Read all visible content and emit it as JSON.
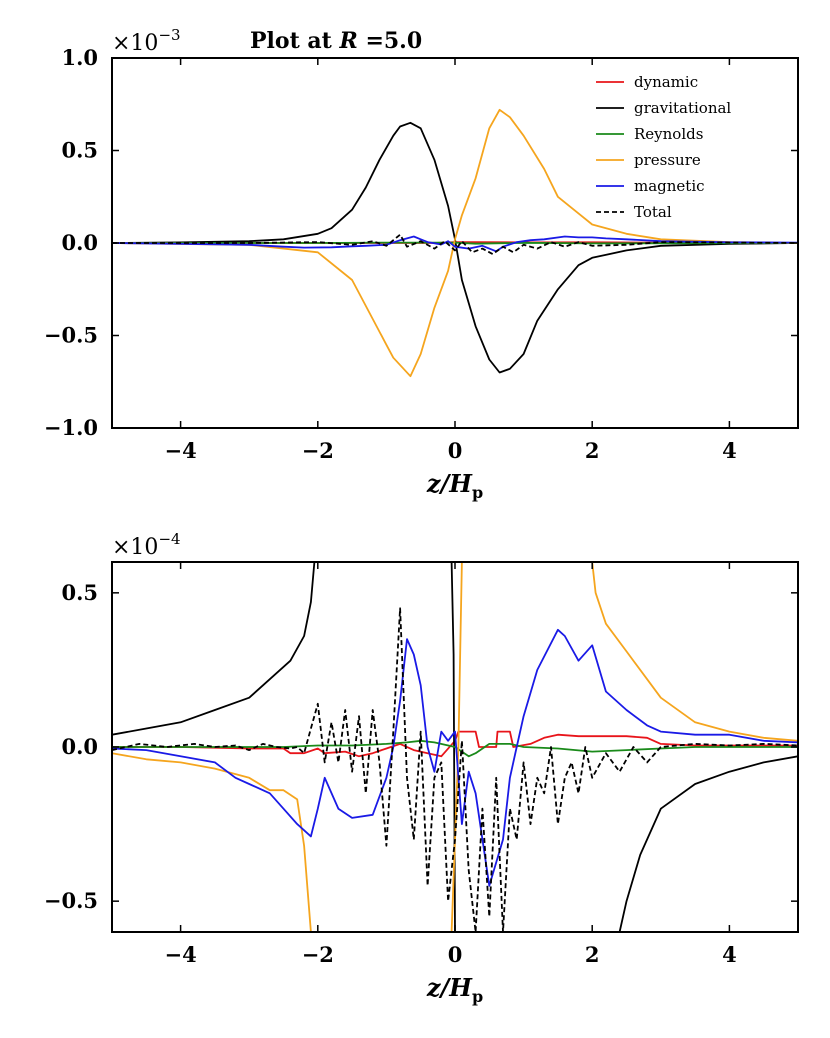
{
  "figure": {
    "title_prefix": "Plot at ",
    "title_var": "R",
    "title_suffix": " =5.0"
  },
  "series_styles": [
    {
      "name": "dynamic",
      "color": "#e8141a",
      "dash": ""
    },
    {
      "name": "gravitational",
      "color": "#000000",
      "dash": ""
    },
    {
      "name": "Reynolds",
      "color": "#1a8a1a",
      "dash": ""
    },
    {
      "name": "pressure",
      "color": "#f5a51e",
      "dash": ""
    },
    {
      "name": "magnetic",
      "color": "#1a1ae6",
      "dash": ""
    },
    {
      "name": "Total",
      "color": "#000000",
      "dash": "5,3"
    }
  ],
  "chart_data": [
    {
      "type": "line",
      "xlabel_var": "z/H",
      "xlabel_sub": "p",
      "scale_base": "×10",
      "scale_exp": "−3",
      "xlim": [
        -5,
        5
      ],
      "ylim": [
        -1.0,
        1.0
      ],
      "xticks": [
        -4,
        -2,
        0,
        2,
        4
      ],
      "xtick_labels": [
        "−4",
        "−2",
        "0",
        "2",
        "4"
      ],
      "yticks": [
        -1.0,
        -0.5,
        0.0,
        0.5,
        1.0
      ],
      "ytick_labels": [
        "−1.0",
        "−0.5",
        "0.0",
        "0.5",
        "1.0"
      ],
      "legend": [
        "dynamic",
        "gravitational",
        "Reynolds",
        "pressure",
        "magnetic",
        "Total"
      ],
      "series": [
        {
          "name": "dynamic",
          "x": [
            -5,
            -3,
            -1,
            -0.3,
            0,
            0.3,
            1,
            2,
            3,
            5
          ],
          "y": [
            0,
            0,
            0,
            0,
            0.005,
            0.005,
            0.003,
            0.004,
            0.002,
            0
          ]
        },
        {
          "name": "gravitational",
          "x": [
            -5,
            -4,
            -3,
            -2.5,
            -2,
            -1.8,
            -1.5,
            -1.3,
            -1.1,
            -0.9,
            -0.8,
            -0.65,
            -0.5,
            -0.3,
            -0.1,
            0,
            0.1,
            0.3,
            0.5,
            0.65,
            0.8,
            1.0,
            1.2,
            1.5,
            1.8,
            2,
            2.5,
            3,
            4,
            5
          ],
          "y": [
            0,
            0.003,
            0.01,
            0.02,
            0.05,
            0.08,
            0.18,
            0.3,
            0.45,
            0.58,
            0.63,
            0.65,
            0.62,
            0.45,
            0.2,
            0.02,
            -0.2,
            -0.45,
            -0.63,
            -0.7,
            -0.68,
            -0.6,
            -0.42,
            -0.25,
            -0.12,
            -0.08,
            -0.04,
            -0.015,
            -0.005,
            0
          ]
        },
        {
          "name": "Reynolds",
          "x": [
            -5,
            -2,
            -1,
            0,
            0.3,
            1,
            2,
            5
          ],
          "y": [
            0,
            0,
            0.002,
            0.002,
            -0.004,
            0.001,
            -0.002,
            0
          ]
        },
        {
          "name": "pressure",
          "x": [
            -5,
            -3,
            -2,
            -1.5,
            -1.0,
            -0.9,
            -0.65,
            -0.5,
            -0.3,
            -0.1,
            0,
            0.1,
            0.3,
            0.5,
            0.65,
            0.8,
            1.0,
            1.3,
            1.5,
            1.8,
            2,
            2.5,
            3,
            4,
            5
          ],
          "y": [
            0,
            -0.01,
            -0.05,
            -0.2,
            -0.55,
            -0.62,
            -0.72,
            -0.6,
            -0.35,
            -0.15,
            0.02,
            0.15,
            0.35,
            0.62,
            0.72,
            0.68,
            0.58,
            0.4,
            0.25,
            0.16,
            0.1,
            0.05,
            0.02,
            0.005,
            0
          ]
        },
        {
          "name": "magnetic",
          "x": [
            -5,
            -4,
            -3,
            -2.5,
            -2.2,
            -1.8,
            -1.5,
            -1.3,
            -1.0,
            -0.8,
            -0.6,
            -0.5,
            -0.4,
            -0.2,
            -0.1,
            0,
            0.2,
            0.4,
            0.6,
            0.7,
            0.9,
            1.1,
            1.3,
            1.6,
            1.8,
            2,
            2.2,
            2.5,
            3,
            4,
            5
          ],
          "y": [
            0,
            -0.005,
            -0.01,
            -0.02,
            -0.025,
            -0.023,
            -0.018,
            -0.015,
            -0.01,
            0.015,
            0.035,
            0.02,
            0.005,
            -0.008,
            0.01,
            -0.02,
            -0.03,
            -0.015,
            -0.045,
            -0.02,
            0.005,
            0.015,
            0.02,
            0.035,
            0.03,
            0.03,
            0.025,
            0.02,
            0.01,
            0.004,
            0.002
          ]
        },
        {
          "name": "Total",
          "x": [
            -5,
            -3,
            -2,
            -1.5,
            -1.2,
            -1.0,
            -0.8,
            -0.7,
            -0.5,
            -0.3,
            -0.15,
            0,
            0.1,
            0.25,
            0.4,
            0.55,
            0.7,
            0.85,
            1.0,
            1.2,
            1.4,
            1.6,
            1.8,
            2,
            2.5,
            3,
            5
          ],
          "y": [
            0,
            0,
            0.005,
            -0.01,
            0.01,
            -0.015,
            0.045,
            -0.02,
            0.01,
            -0.03,
            0.01,
            -0.04,
            0.01,
            -0.05,
            -0.03,
            -0.06,
            -0.02,
            -0.05,
            -0.01,
            -0.03,
            0.005,
            -0.02,
            0.005,
            -0.015,
            -0.01,
            0.005,
            0
          ]
        }
      ]
    },
    {
      "type": "line",
      "xlabel_var": "z/H",
      "xlabel_sub": "p",
      "scale_base": "×10",
      "scale_exp": "−4",
      "xlim": [
        -5,
        5
      ],
      "ylim": [
        -0.6,
        0.6
      ],
      "xticks": [
        -4,
        -2,
        0,
        2,
        4
      ],
      "xtick_labels": [
        "−4",
        "−2",
        "0",
        "2",
        "4"
      ],
      "yticks": [
        -0.5,
        0.0,
        0.5
      ],
      "ytick_labels": [
        "−0.5",
        "0.0",
        "0.5"
      ],
      "series": [
        {
          "name": "dynamic",
          "x": [
            -5,
            -4,
            -3,
            -2.5,
            -2.4,
            -2.2,
            -2.0,
            -1.9,
            -1.6,
            -1.4,
            -1.2,
            -1.0,
            -0.8,
            -0.6,
            -0.4,
            -0.2,
            0,
            0.05,
            0.3,
            0.35,
            0.6,
            0.62,
            0.8,
            0.85,
            1.1,
            1.3,
            1.5,
            1.8,
            2.2,
            2.5,
            2.8,
            3.0,
            3.5,
            4.0,
            5
          ],
          "y": [
            0,
            0,
            -0.005,
            -0.005,
            -0.02,
            -0.02,
            -0.005,
            -0.02,
            -0.015,
            -0.03,
            -0.02,
            -0.005,
            0.01,
            -0.01,
            -0.02,
            -0.03,
            0.02,
            0.05,
            0.05,
            0.0,
            0.0,
            0.05,
            0.05,
            0.0,
            0.01,
            0.03,
            0.04,
            0.035,
            0.035,
            0.035,
            0.03,
            0.01,
            0.005,
            0.005,
            0.005
          ]
        },
        {
          "name": "gravitational",
          "x": [
            -5,
            -4.5,
            -4,
            -3.5,
            -3,
            -2.7,
            -2.4,
            -2.2,
            -2.1,
            -2.05
          ],
          "y": [
            0.04,
            0.06,
            0.08,
            0.12,
            0.16,
            0.22,
            0.28,
            0.36,
            0.47,
            0.6
          ]
        },
        {
          "name": "gravitational",
          "x": [
            -0.05,
            -0.02,
            0.0
          ],
          "y": [
            0.6,
            0.3,
            -0.6
          ]
        },
        {
          "name": "gravitational",
          "x": [
            2.4,
            2.5,
            2.7,
            3.0,
            3.5,
            4.0,
            4.5,
            5
          ],
          "y": [
            -0.6,
            -0.5,
            -0.35,
            -0.2,
            -0.12,
            -0.08,
            -0.05,
            -0.03
          ]
        },
        {
          "name": "Reynolds",
          "x": [
            -5,
            -4,
            -3,
            -2.5,
            -2,
            -1.5,
            -1,
            -0.7,
            -0.5,
            -0.3,
            0,
            0.2,
            0.3,
            0.5,
            0.8,
            1.0,
            1.5,
            2.0,
            2.5,
            3.0,
            3.5,
            4.0,
            5
          ],
          "y": [
            0,
            0,
            0,
            0,
            0.005,
            0.005,
            0.01,
            0.015,
            0.02,
            0.015,
            0,
            -0.03,
            -0.02,
            0.01,
            0.01,
            0,
            -0.005,
            -0.015,
            -0.01,
            -0.005,
            0,
            0,
            0
          ]
        },
        {
          "name": "pressure",
          "x": [
            -5,
            -4.5,
            -4,
            -3.5,
            -3,
            -2.7,
            -2.5,
            -2.3,
            -2.2,
            -2.1
          ],
          "y": [
            -0.02,
            -0.04,
            -0.05,
            -0.07,
            -0.1,
            -0.14,
            -0.14,
            -0.17,
            -0.32,
            -0.6
          ]
        },
        {
          "name": "pressure",
          "x": [
            -0.05,
            0.05,
            0.1
          ],
          "y": [
            -0.6,
            0.0,
            0.6
          ]
        },
        {
          "name": "pressure",
          "x": [
            2.0,
            2.05,
            2.2,
            2.5,
            2.8,
            3.0,
            3.5,
            4.0,
            4.5,
            5
          ],
          "y": [
            0.6,
            0.5,
            0.4,
            0.31,
            0.22,
            0.16,
            0.08,
            0.05,
            0.03,
            0.02
          ]
        },
        {
          "name": "magnetic",
          "x": [
            -5,
            -4.5,
            -4,
            -3.5,
            -3.2,
            -3.0,
            -2.7,
            -2.5,
            -2.3,
            -2.1,
            -2.0,
            -1.9,
            -1.7,
            -1.5,
            -1.2,
            -1.0,
            -0.9,
            -0.8,
            -0.7,
            -0.6,
            -0.5,
            -0.4,
            -0.3,
            -0.2,
            -0.1,
            0,
            0.1,
            0.2,
            0.3,
            0.5,
            0.7,
            0.8,
            0.9,
            1.0,
            1.2,
            1.5,
            1.6,
            1.8,
            2.0,
            2.2,
            2.5,
            2.8,
            3.0,
            3.5,
            4.0,
            4.5,
            5
          ],
          "y": [
            -0.005,
            -0.01,
            -0.03,
            -0.05,
            -0.1,
            -0.12,
            -0.15,
            -0.2,
            -0.25,
            -0.29,
            -0.2,
            -0.1,
            -0.2,
            -0.23,
            -0.22,
            -0.1,
            0.0,
            0.15,
            0.35,
            0.3,
            0.2,
            0.0,
            -0.08,
            0.05,
            0.02,
            0.05,
            -0.25,
            -0.08,
            -0.15,
            -0.45,
            -0.3,
            -0.1,
            0.0,
            0.1,
            0.25,
            0.38,
            0.36,
            0.28,
            0.33,
            0.18,
            0.12,
            0.07,
            0.05,
            0.04,
            0.04,
            0.02,
            0.015
          ]
        },
        {
          "name": "Total",
          "x": [
            -5,
            -4.6,
            -4.2,
            -3.8,
            -3.5,
            -3.2,
            -3.0,
            -2.8,
            -2.6,
            -2.4,
            -2.3,
            -2.2,
            -2.1,
            -2.0,
            -1.9,
            -1.8,
            -1.7,
            -1.6,
            -1.5,
            -1.4,
            -1.3,
            -1.2,
            -1.1,
            -1.0,
            -0.9,
            -0.8,
            -0.7,
            -0.6,
            -0.5,
            -0.4,
            -0.3,
            -0.2,
            -0.1,
            0,
            0.1,
            0.2,
            0.3,
            0.4,
            0.5,
            0.6,
            0.7,
            0.8,
            0.9,
            1.0,
            1.1,
            1.2,
            1.3,
            1.4,
            1.5,
            1.6,
            1.7,
            1.8,
            1.9,
            2.0,
            2.2,
            2.4,
            2.6,
            2.8,
            3.0,
            3.5,
            4.0,
            4.5,
            5
          ],
          "y": [
            -0.01,
            0.01,
            0.0,
            0.01,
            0.0,
            0.005,
            -0.01,
            0.01,
            0.0,
            -0.005,
            0.0,
            -0.02,
            0.06,
            0.14,
            -0.05,
            0.08,
            -0.05,
            0.12,
            -0.08,
            0.1,
            -0.15,
            0.12,
            -0.05,
            -0.32,
            0.05,
            0.45,
            -0.1,
            -0.3,
            0.05,
            -0.45,
            -0.1,
            -0.05,
            -0.5,
            -0.3,
            0.02,
            -0.4,
            -0.6,
            -0.2,
            -0.55,
            -0.1,
            -0.6,
            -0.2,
            -0.3,
            -0.05,
            -0.25,
            -0.1,
            -0.15,
            0.0,
            -0.25,
            -0.1,
            -0.05,
            -0.15,
            0.0,
            -0.1,
            -0.02,
            -0.08,
            0.0,
            -0.05,
            0.0,
            0.01,
            0.005,
            0.01,
            0.005
          ]
        }
      ]
    }
  ]
}
